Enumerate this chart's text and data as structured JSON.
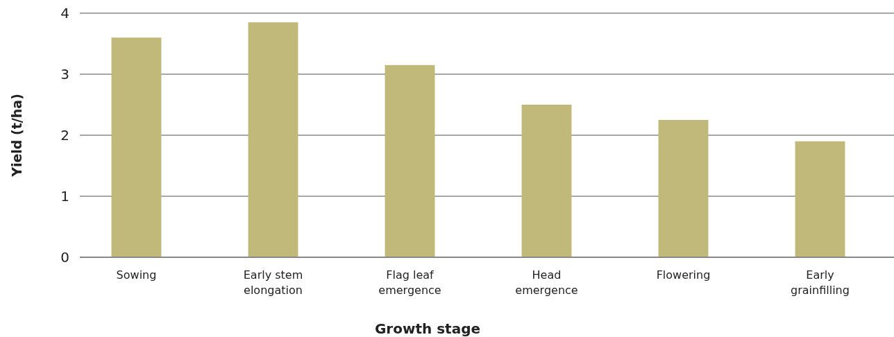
{
  "chart_data": {
    "type": "bar",
    "xlabel": "Growth stage",
    "ylabel": "Yield (t/ha)",
    "categories": [
      "Sowing",
      "Early stem elongation",
      "Flag leaf emergence",
      "Head emergence",
      "Flowering",
      "Early grainfilling"
    ],
    "values": [
      3.6,
      3.85,
      3.15,
      2.5,
      2.25,
      1.9
    ],
    "color": "#c1b97a",
    "ylim": [
      0,
      4
    ],
    "yticks": [
      0,
      1,
      2,
      3,
      4
    ],
    "grid": "y"
  }
}
